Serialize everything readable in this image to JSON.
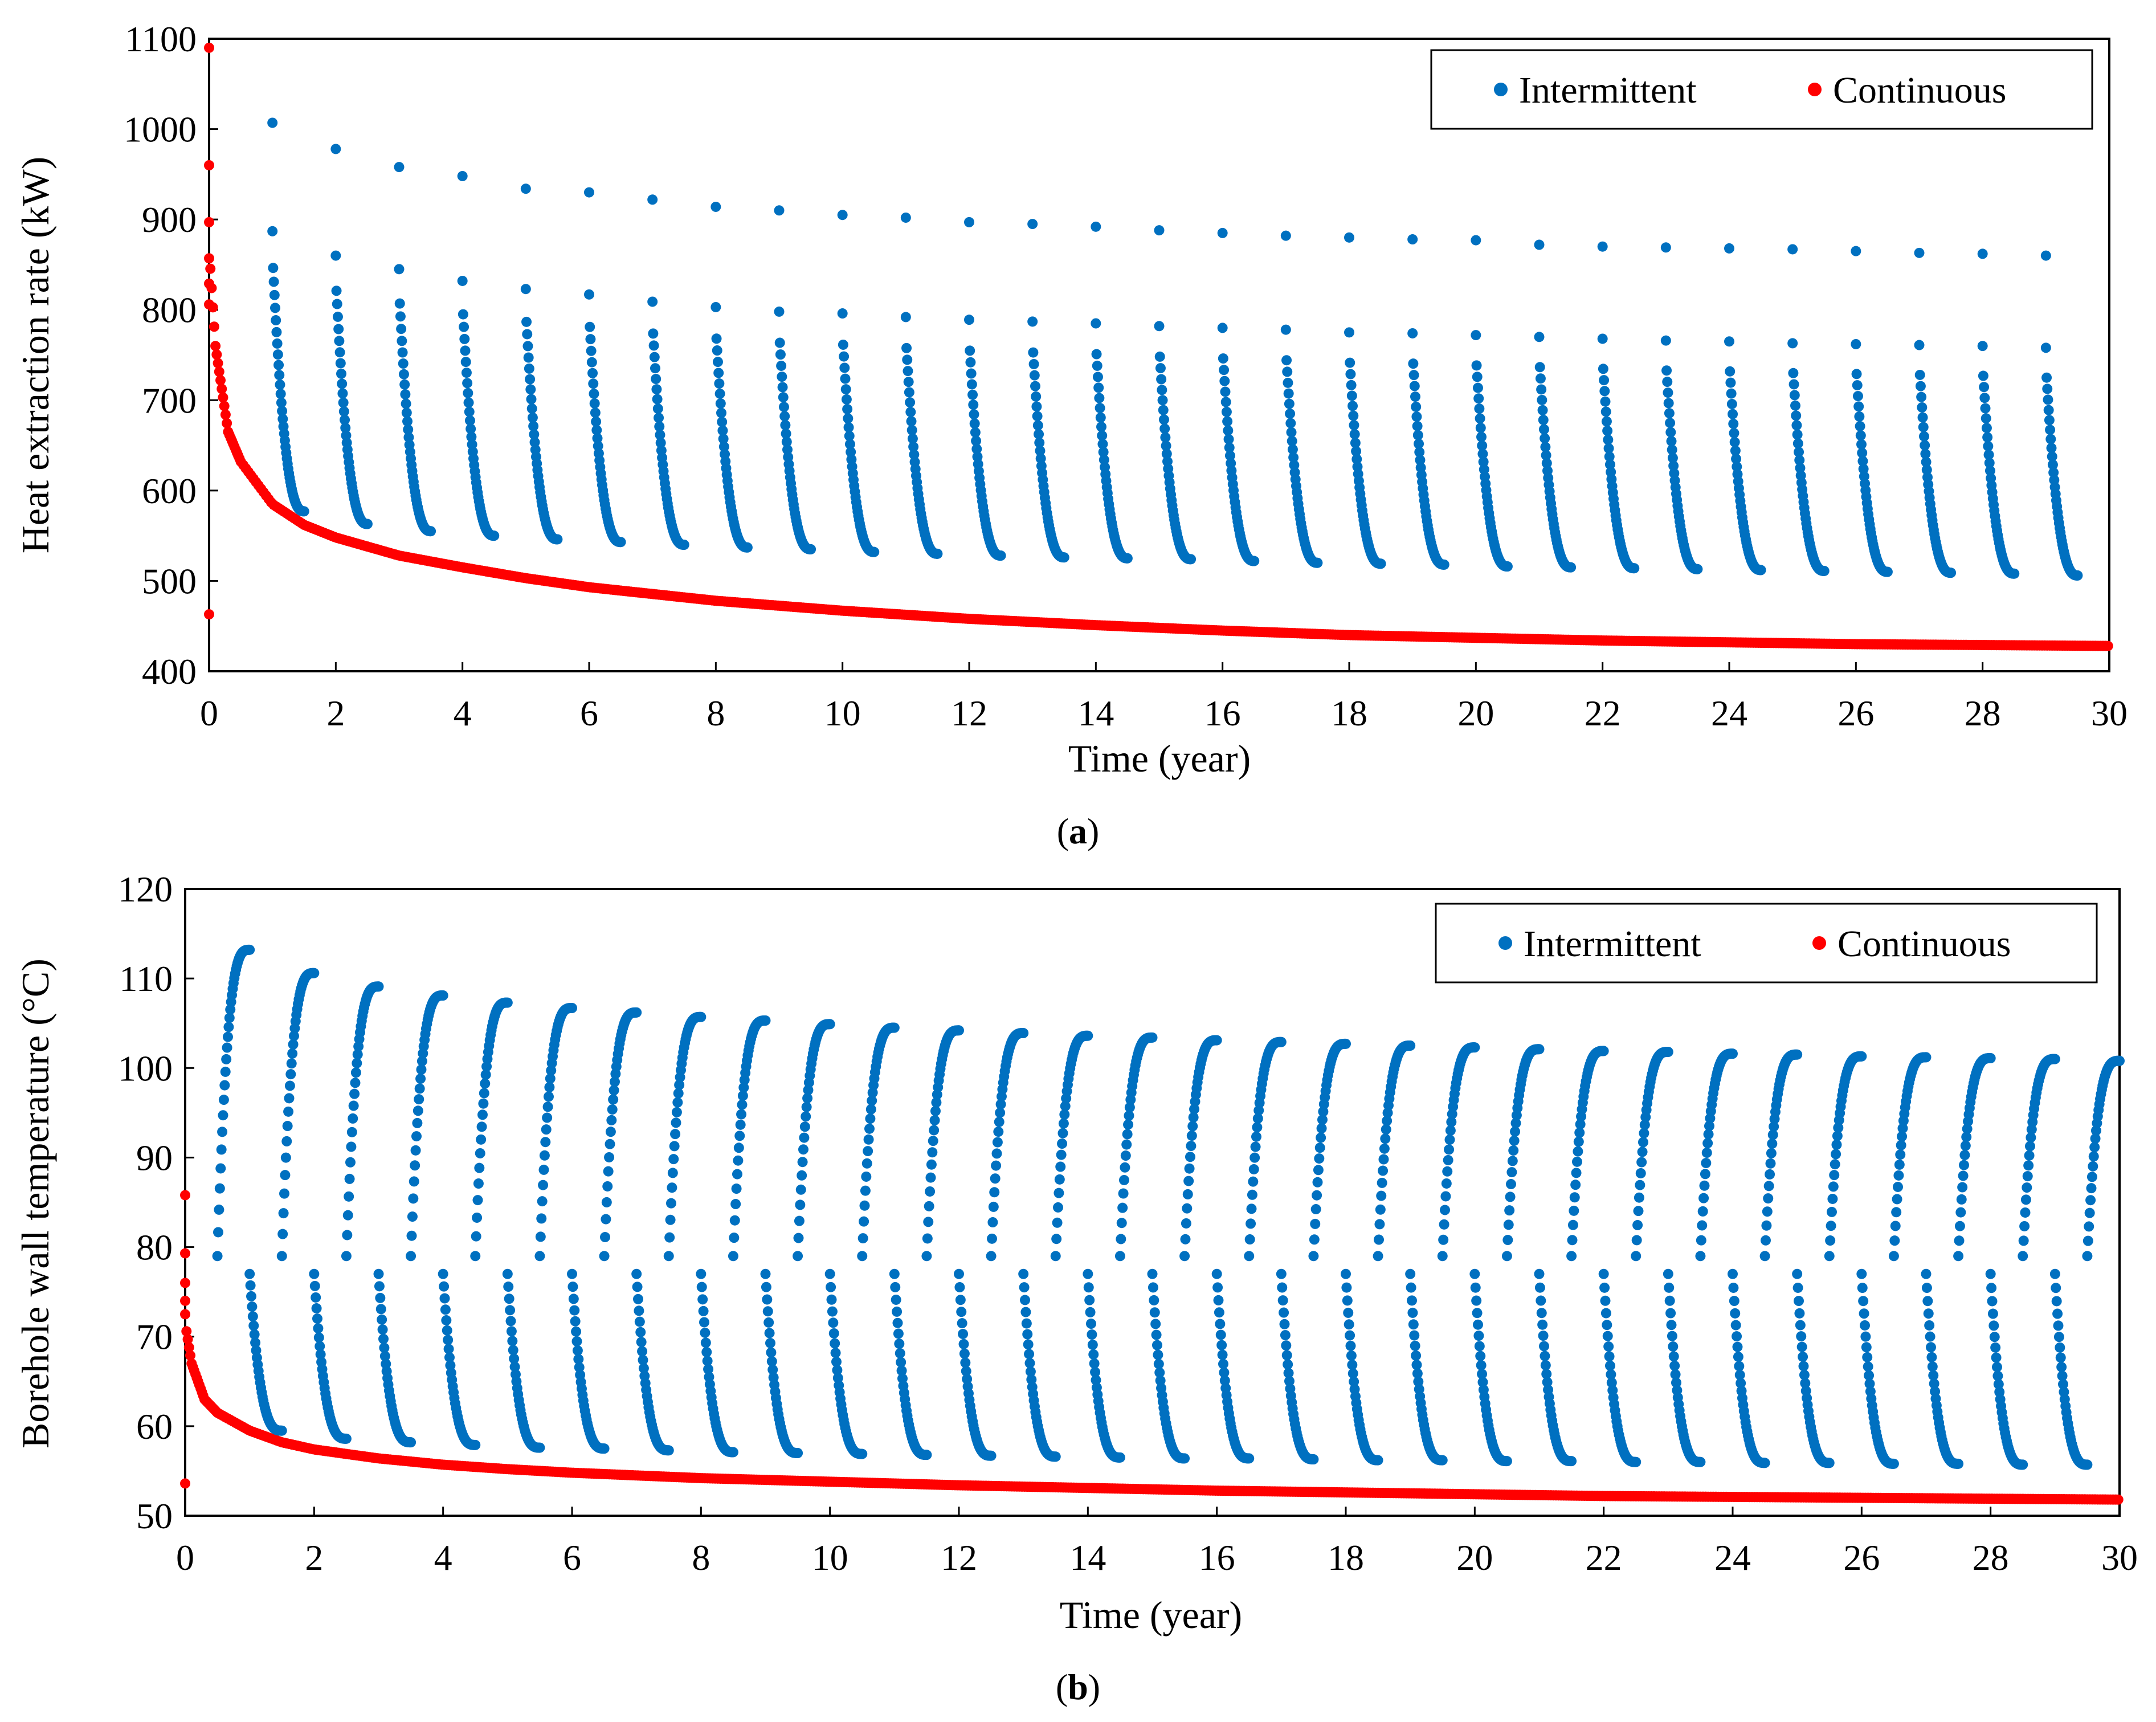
{
  "colors": {
    "intermittent": "#0070C0",
    "continuous": "#FF0000",
    "axis": "#000000"
  },
  "chart_data": [
    {
      "id": "a",
      "type": "scatter",
      "panel_label": "a",
      "xlabel": "Time (year)",
      "ylabel": "Heat extraction rate (kW)",
      "xlim": [
        0,
        30
      ],
      "ylim": [
        400,
        1100
      ],
      "xticks": [
        0,
        2,
        4,
        6,
        8,
        10,
        12,
        14,
        16,
        18,
        20,
        22,
        24,
        26,
        28,
        30
      ],
      "yticks": [
        400,
        500,
        600,
        700,
        800,
        900,
        1000,
        1100
      ],
      "legend": {
        "position": "top-right",
        "entries": [
          "Intermittent",
          "Continuous"
        ]
      },
      "series": [
        {
          "name": "Intermittent",
          "model": "Recurring heating seasons: each year begins at the listed start value then decays within the season toward the listed end value.",
          "season_starts_year": [
            1,
            2,
            3,
            4,
            5,
            6,
            7,
            8,
            9,
            10,
            11,
            12,
            13,
            14,
            15,
            16,
            17,
            18,
            19,
            20,
            21,
            22,
            23,
            24,
            25,
            26,
            27,
            28,
            29
          ],
          "start_values": [
            1007,
            978,
            958,
            948,
            934,
            930,
            922,
            914,
            910,
            905,
            902,
            897,
            895,
            892,
            888,
            885,
            882,
            880,
            878,
            877,
            872,
            870,
            869,
            868,
            867,
            865,
            863,
            862,
            860
          ],
          "second_values": [
            887,
            860,
            845,
            832,
            823,
            817,
            809,
            803,
            798,
            796,
            792,
            789,
            787,
            785,
            782,
            780,
            778,
            775,
            774,
            772,
            770,
            768,
            766,
            765,
            763,
            762,
            761,
            760,
            758
          ],
          "end_values": [
            577,
            563,
            555,
            550,
            546,
            543,
            540,
            537,
            535,
            532,
            530,
            528,
            526,
            525,
            524,
            522,
            520,
            519,
            518,
            516,
            515,
            514,
            513,
            512,
            511,
            510,
            509,
            508,
            506
          ]
        },
        {
          "name": "Continuous",
          "model": "Continuous extraction decaying from an initial spike toward a slowly declining floor.",
          "points": [
            [
              0,
              1090
            ],
            [
              0,
              960
            ],
            [
              0,
              897
            ],
            [
              0,
              857
            ],
            [
              0,
              829
            ],
            [
              0,
              806
            ],
            [
              0,
              463
            ],
            [
              0.1,
              760
            ],
            [
              0.3,
              665
            ],
            [
              0.5,
              632
            ],
            [
              1,
              585
            ],
            [
              1.5,
              562
            ],
            [
              2,
              548
            ],
            [
              3,
              528
            ],
            [
              4,
              515
            ],
            [
              5,
              503
            ],
            [
              6,
              493
            ],
            [
              8,
              478
            ],
            [
              10,
              467
            ],
            [
              12,
              458
            ],
            [
              14,
              451
            ],
            [
              16,
              445
            ],
            [
              18,
              440
            ],
            [
              20,
              437
            ],
            [
              22,
              434
            ],
            [
              24,
              432
            ],
            [
              26,
              430
            ],
            [
              28,
              429
            ],
            [
              30,
              428
            ]
          ]
        }
      ]
    },
    {
      "id": "b",
      "type": "scatter",
      "panel_label": "b",
      "xlabel": "Time (year)",
      "ylabel": "Borehole wall temperature (°C)",
      "xlim": [
        0,
        30
      ],
      "ylim": [
        50,
        120
      ],
      "xticks": [
        0,
        2,
        4,
        6,
        8,
        10,
        12,
        14,
        16,
        18,
        20,
        22,
        24,
        26,
        28,
        30
      ],
      "yticks": [
        50,
        60,
        70,
        80,
        90,
        100,
        110,
        120
      ],
      "legend": {
        "position": "top-right",
        "entries": [
          "Intermittent",
          "Continuous"
        ]
      },
      "series": [
        {
          "name": "Intermittent",
          "model": "Each year: recovery rise from about 79 °C to the listed peak during the off season, then a drop and decay to the listed minimum during the heating season.",
          "cycle_start_year": [
            0,
            1,
            2,
            3,
            4,
            5,
            6,
            7,
            8,
            9,
            10,
            11,
            12,
            13,
            14,
            15,
            16,
            17,
            18,
            19,
            20,
            21,
            22,
            23,
            24,
            25,
            26,
            27,
            28,
            29
          ],
          "peak_values": [
            113.2,
            110.6,
            109.1,
            108.1,
            107.3,
            106.7,
            106.2,
            105.7,
            105.3,
            104.9,
            104.5,
            104.2,
            103.9,
            103.6,
            103.4,
            103.1,
            102.9,
            102.7,
            102.5,
            102.3,
            102.1,
            101.9,
            101.8,
            101.6,
            101.5,
            101.3,
            101.2,
            101.1,
            101.0,
            100.8
          ],
          "min_values": [
            59.5,
            58.6,
            58.2,
            57.9,
            57.6,
            57.5,
            57.3,
            57.1,
            57.0,
            56.9,
            56.8,
            56.7,
            56.6,
            56.5,
            56.4,
            56.4,
            56.3,
            56.2,
            56.2,
            56.1,
            56.1,
            56.0,
            56.0,
            55.9,
            55.9,
            55.8,
            55.8,
            55.7,
            55.7
          ]
        },
        {
          "name": "Continuous",
          "model": "Sharp initial drop then slow decay.",
          "points": [
            [
              0,
              85.8
            ],
            [
              0,
              79.3
            ],
            [
              0,
              76
            ],
            [
              0,
              74
            ],
            [
              0,
              72.5
            ],
            [
              0,
              53.6
            ],
            [
              0.1,
              67
            ],
            [
              0.3,
              63
            ],
            [
              0.5,
              61.5
            ],
            [
              1,
              59.5
            ],
            [
              1.5,
              58.2
            ],
            [
              2,
              57.4
            ],
            [
              3,
              56.4
            ],
            [
              4,
              55.7
            ],
            [
              5,
              55.2
            ],
            [
              6,
              54.8
            ],
            [
              8,
              54.2
            ],
            [
              10,
              53.8
            ],
            [
              12,
              53.4
            ],
            [
              14,
              53.1
            ],
            [
              16,
              52.8
            ],
            [
              18,
              52.6
            ],
            [
              20,
              52.4
            ],
            [
              22,
              52.2
            ],
            [
              24,
              52.1
            ],
            [
              26,
              52.0
            ],
            [
              28,
              51.9
            ],
            [
              30,
              51.8
            ]
          ]
        }
      ]
    }
  ]
}
